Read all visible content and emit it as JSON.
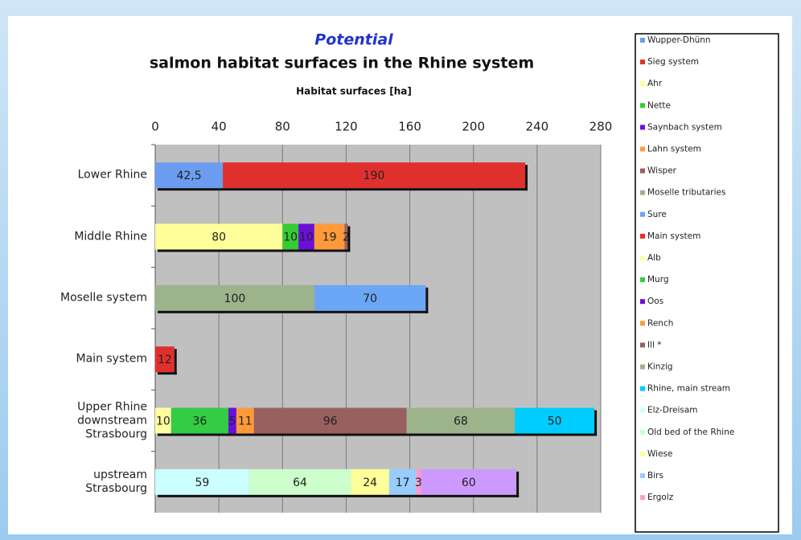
{
  "chart_data": {
    "type": "stacked_bar_horizontal",
    "title": "Potential",
    "subtitle": "salmon habitat surfaces in the Rhine system",
    "x_label": "Habitat surfaces [ha]",
    "categories": [
      "Lower Rhine",
      "Middle Rhine",
      "Moselle system",
      "Main system",
      "Upper Rhine downstream Strasbourg",
      "upstream Strasbourg"
    ],
    "xlim": [
      0,
      280
    ],
    "xticks": [
      0,
      40,
      80,
      120,
      160,
      200,
      240,
      280
    ],
    "grid": true,
    "legend": "right",
    "series": [
      {
        "name": "Wupper-Dhünn",
        "color": "#6b9cf0",
        "values": [
          42.5,
          null,
          null,
          null,
          null,
          null
        ],
        "value_labels": [
          "42,5",
          null,
          null,
          null,
          null,
          null
        ]
      },
      {
        "name": "Sieg system",
        "color": "#e0302e",
        "values": [
          190,
          null,
          null,
          null,
          null,
          null
        ]
      },
      {
        "name": "Ahr",
        "color": "#ffff99",
        "values": [
          null,
          80,
          null,
          null,
          null,
          null
        ]
      },
      {
        "name": "Nette",
        "color": "#33cc33",
        "values": [
          null,
          10,
          null,
          null,
          null,
          null
        ]
      },
      {
        "name": "Saynbach system",
        "color": "#6a0fd8",
        "values": [
          null,
          10,
          null,
          null,
          null,
          null
        ]
      },
      {
        "name": "Lahn system",
        "color": "#ff9a3a",
        "values": [
          null,
          19,
          null,
          null,
          null,
          null
        ]
      },
      {
        "name": "Wisper",
        "color": "#996060",
        "values": [
          null,
          2,
          null,
          null,
          null,
          null
        ]
      },
      {
        "name": "Moselle tributaries",
        "color": "#9cb38c",
        "values": [
          null,
          null,
          100,
          null,
          null,
          null
        ]
      },
      {
        "name": "Sure",
        "color": "#6aa6f5",
        "values": [
          null,
          null,
          70,
          null,
          null,
          null
        ]
      },
      {
        "name": "Main system",
        "color": "#e0302e",
        "values": [
          null,
          null,
          null,
          12,
          null,
          null
        ]
      },
      {
        "name": "Alb",
        "color": "#ffffa0",
        "values": [
          null,
          null,
          null,
          null,
          10,
          null
        ]
      },
      {
        "name": "Murg",
        "color": "#33cc44",
        "values": [
          null,
          null,
          null,
          null,
          36,
          null
        ]
      },
      {
        "name": "Oos",
        "color": "#6a0fd8",
        "values": [
          null,
          null,
          null,
          null,
          5,
          null
        ]
      },
      {
        "name": "Rench",
        "color": "#ff9a3a",
        "values": [
          null,
          null,
          null,
          null,
          11,
          null
        ]
      },
      {
        "name": "Ill *",
        "color": "#996060",
        "values": [
          null,
          null,
          null,
          null,
          96,
          null
        ]
      },
      {
        "name": "Kinzig",
        "color": "#9cb38c",
        "values": [
          null,
          null,
          null,
          null,
          68,
          null
        ]
      },
      {
        "name": "Rhine, main stream",
        "color": "#00ccff",
        "values": [
          null,
          null,
          null,
          null,
          50,
          null
        ]
      },
      {
        "name": "Elz-Dreisam",
        "color": "#ccffff",
        "values": [
          null,
          null,
          null,
          null,
          null,
          59
        ]
      },
      {
        "name": "Old bed of the Rhine",
        "color": "#ccffcc",
        "values": [
          null,
          null,
          null,
          null,
          null,
          64
        ]
      },
      {
        "name": "Wiese",
        "color": "#ffff99",
        "values": [
          null,
          null,
          null,
          null,
          null,
          24
        ]
      },
      {
        "name": "Birs",
        "color": "#99ccff",
        "values": [
          null,
          null,
          null,
          null,
          null,
          17
        ]
      },
      {
        "name": "Ergolz",
        "color": "#ff99cc",
        "values": [
          null,
          null,
          null,
          null,
          null,
          3
        ]
      },
      {
        "color": "#cc99ff",
        "values": [
          null,
          null,
          null,
          null,
          null,
          60
        ]
      }
    ]
  }
}
